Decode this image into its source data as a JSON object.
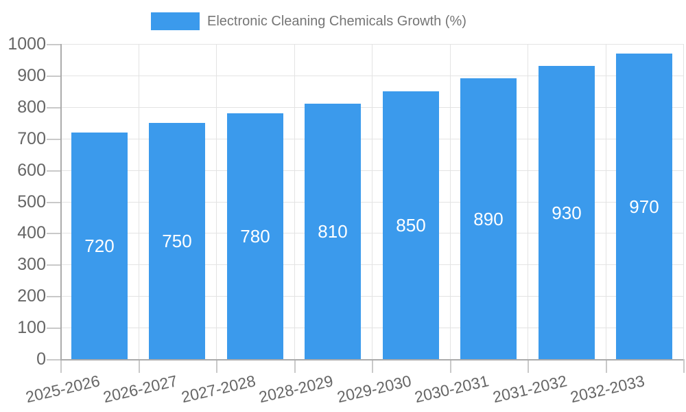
{
  "legend": {
    "label": "Electronic Cleaning Chemicals Growth (%)"
  },
  "chart_data": {
    "type": "bar",
    "title": "Electronic Cleaning Chemicals Growth (%)",
    "categories": [
      "2025-2026",
      "2026-2027",
      "2027-2028",
      "2028-2029",
      "2029-2030",
      "2030-2031",
      "2031-2032",
      "2032-2033"
    ],
    "values": [
      720,
      750,
      780,
      810,
      850,
      890,
      930,
      970
    ],
    "xlabel": "",
    "ylabel": "",
    "ylim": [
      0,
      1000
    ],
    "ytick_step": 100,
    "ytick_labels": [
      "0",
      "100",
      "200",
      "300",
      "400",
      "500",
      "600",
      "700",
      "800",
      "900",
      "1000"
    ],
    "grid": true,
    "legend_position": "top-center",
    "value_label_position": "centered-inside-bars",
    "bar_color": "#3B9AEC",
    "colors": {
      "grid": "#E3E3E3",
      "axis": "#ABABAB",
      "tick": "#C9C9C9",
      "tick_label": "#666666",
      "legend_text": "#757575",
      "value_label": "#FFFFFF",
      "background": "#FFFFFF"
    }
  }
}
